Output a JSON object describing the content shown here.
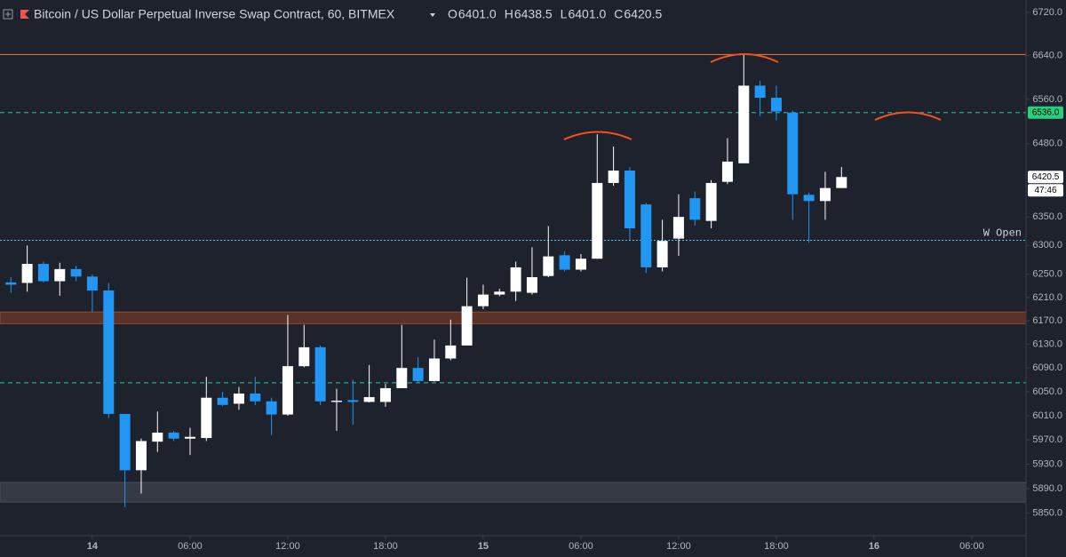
{
  "chart_data": {
    "type": "candlestick",
    "title": "Bitcoin / US Dollar Perpetual Inverse Swap Contract, 60, BITMEX",
    "ohlc_header": [
      {
        "label": "O",
        "value": "6401.0"
      },
      {
        "label": "H",
        "value": "6438.5"
      },
      {
        "label": "L",
        "value": "6401.0"
      },
      {
        "label": "C",
        "value": "6420.5"
      }
    ],
    "x": [
      -5,
      -4,
      -3,
      -2,
      -1,
      0,
      1,
      2,
      3,
      4,
      5,
      6,
      7,
      8,
      9,
      10,
      11,
      12,
      13,
      14,
      15,
      16,
      17,
      18,
      19,
      20,
      21,
      22,
      23,
      24,
      25,
      26,
      27,
      28,
      29,
      30,
      31,
      32,
      33,
      34,
      35,
      36,
      37,
      38,
      39,
      40,
      41,
      42,
      43,
      44,
      45,
      46
    ],
    "open": [
      6236,
      6235,
      6268,
      6238,
      6259,
      6246,
      6222,
      6013,
      5920,
      5967,
      5982,
      5972,
      5973,
      6040,
      6030,
      6047,
      6034,
      6012,
      6093,
      6125,
      6033,
      6036,
      6033,
      6033,
      6056,
      6090,
      6068,
      6106,
      6128,
      6195,
      6215,
      6220,
      6218,
      6247,
      6283,
      6258,
      6277,
      6410,
      6432,
      6372,
      6262,
      6312,
      6383,
      6343,
      6412,
      6445,
      6585,
      6563,
      6536,
      6389,
      6378,
      6401
    ],
    "high": [
      6245,
      6300,
      6272,
      6270,
      6265,
      6250,
      6235,
      6013,
      5972,
      6017,
      5985,
      5990,
      6075,
      6050,
      6058,
      6075,
      6040,
      6180,
      6163,
      6128,
      6055,
      6070,
      6095,
      6063,
      6163,
      6108,
      6138,
      6172,
      6244,
      6232,
      6225,
      6272,
      6297,
      6334,
      6290,
      6285,
      6497,
      6475,
      6438,
      6375,
      6345,
      6390,
      6395,
      6415,
      6490,
      6641,
      6594,
      6585,
      6540,
      6393,
      6430,
      6438.5
    ],
    "low": [
      6218,
      6220,
      6236,
      6213,
      6238,
      6185,
      6006,
      5860,
      5882,
      5950,
      5968,
      5945,
      5968,
      6026,
      6020,
      6028,
      5978,
      6010,
      6091,
      6028,
      5985,
      5995,
      6032,
      6025,
      6056,
      6065,
      6067,
      6103,
      6128,
      6190,
      6212,
      6204,
      6215,
      6245,
      6255,
      6255,
      6277,
      6405,
      6310,
      6252,
      6255,
      6282,
      6335,
      6330,
      6408,
      6445,
      6530,
      6522,
      6345,
      6305,
      6345,
      6401
    ],
    "close": [
      6232,
      6268,
      6238,
      6259,
      6246,
      6222,
      6013,
      5920,
      5968,
      5982,
      5972,
      5975,
      6040,
      6028,
      6047,
      6034,
      6012,
      6093,
      6125,
      6034,
      6035,
      6033,
      6041,
      6056,
      6090,
      6068,
      6106,
      6128,
      6195,
      6215,
      6220,
      6262,
      6245,
      6281,
      6258,
      6277,
      6410,
      6432,
      6330,
      6262,
      6308,
      6350,
      6345,
      6410,
      6448,
      6585,
      6563,
      6538,
      6390,
      6378,
      6401,
      6420.5
    ],
    "up_color": "#ffffff",
    "down_color": "#2196f3",
    "log_scale": true,
    "ylim": [
      5818,
      6743
    ],
    "yticks": [
      {
        "value": 5850,
        "label": "5850.0"
      },
      {
        "value": 5890,
        "label": "5890.0"
      },
      {
        "value": 5930,
        "label": "5930.0"
      },
      {
        "value": 5970,
        "label": "5970.0"
      },
      {
        "value": 6010,
        "label": "6010.0"
      },
      {
        "value": 6050,
        "label": "6050.0"
      },
      {
        "value": 6090,
        "label": "6090.0"
      },
      {
        "value": 6130,
        "label": "6130.0"
      },
      {
        "value": 6170,
        "label": "6170.0"
      },
      {
        "value": 6210,
        "label": "6210.0"
      },
      {
        "value": 6250,
        "label": "6250.0"
      },
      {
        "value": 6300,
        "label": "6300.0"
      },
      {
        "value": 6350,
        "label": "6350.0"
      },
      {
        "value": 6480,
        "label": "6480.0"
      },
      {
        "value": 6560,
        "label": "6560.0"
      },
      {
        "value": 6640,
        "label": "6640.0"
      },
      {
        "value": 6720,
        "label": "6720.0"
      }
    ],
    "xlim": [
      -5.67,
      57.33
    ],
    "xticks": [
      {
        "value": 0,
        "label": "14"
      },
      {
        "value": 6,
        "label": "06:00"
      },
      {
        "value": 12,
        "label": "12:00"
      },
      {
        "value": 18,
        "label": "18:00"
      },
      {
        "value": 24,
        "label": "15"
      },
      {
        "value": 30,
        "label": "06:00"
      },
      {
        "value": 36,
        "label": "12:00"
      },
      {
        "value": 42,
        "label": "18:00"
      },
      {
        "value": 48,
        "label": "16"
      },
      {
        "value": 54,
        "label": "06:00"
      }
    ],
    "levels": [
      {
        "value": 6642,
        "color": "#f57c3a",
        "style": "solid"
      },
      {
        "value": 6536,
        "color": "#26c6a0",
        "style": "dashed"
      },
      {
        "name": "W Open",
        "value": 6309,
        "color": "#4fc3f7",
        "style": "dotted"
      },
      {
        "value": 6065,
        "color": "#26c6a0",
        "style": "dashed"
      }
    ],
    "zones": [
      {
        "from": 6165,
        "to": 6185,
        "color": "#5d3226"
      },
      {
        "from": 5868,
        "to": 5900,
        "color": "#363a45"
      }
    ],
    "price_labels": [
      {
        "value": 6536,
        "label": "6536.0",
        "color": "#26d07c",
        "text_color": "#000000"
      },
      {
        "value": 6420.5,
        "label": "6420.5",
        "color": "#ffffff",
        "text_color": "#000000"
      }
    ],
    "countdown": "47:46"
  }
}
